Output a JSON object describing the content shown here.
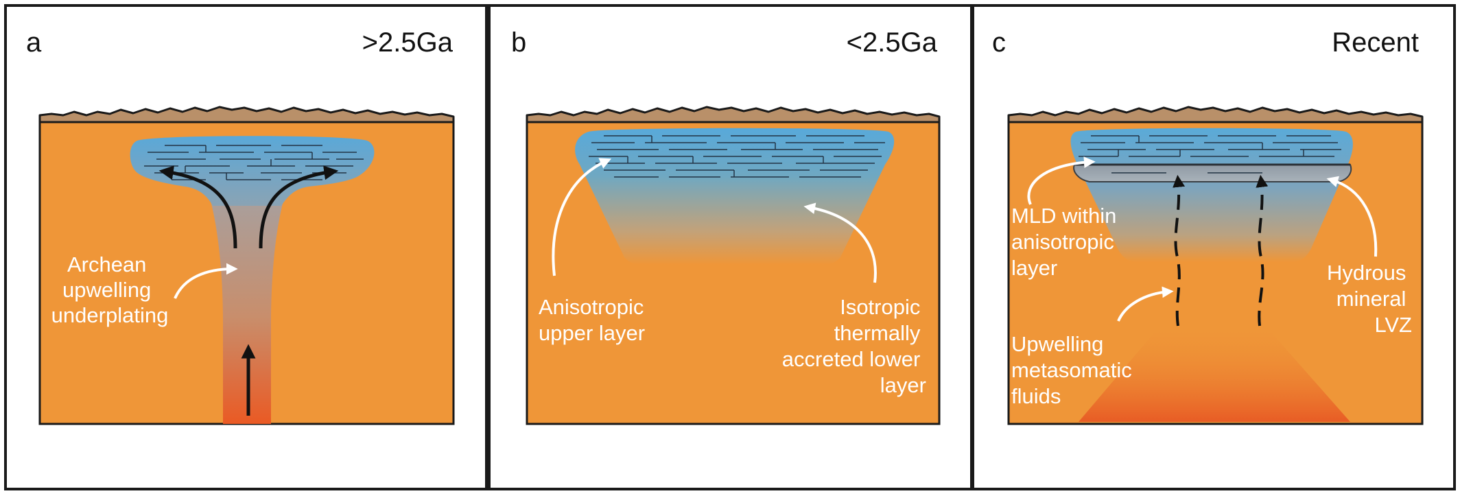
{
  "panels": [
    {
      "letter": "a",
      "era": ">2.5Ga",
      "annotations": [
        {
          "lines": [
            "Archean",
            "upwelling",
            "underplating"
          ]
        }
      ]
    },
    {
      "letter": "b",
      "era": "<2.5Ga",
      "annotations": [
        {
          "lines": [
            "Anisotropic",
            "upper layer"
          ]
        },
        {
          "lines": [
            "Isotropic",
            "thermally",
            "accreted lower",
            "layer"
          ]
        }
      ]
    },
    {
      "letter": "c",
      "era": "Recent",
      "annotations": [
        {
          "lines": [
            "MLD within",
            "anisotropic",
            "layer"
          ]
        },
        {
          "lines": [
            "Hydrous",
            "mineral",
            "LVZ"
          ]
        },
        {
          "lines": [
            "Upwelling",
            "metasomatic",
            "fluids"
          ]
        }
      ]
    }
  ],
  "colors": {
    "mantle": "#ef9638",
    "crust": "#b99069",
    "lithosphere_top": "#5aa9d6",
    "upwelling_hot": "#ea5a24",
    "plume_grey": "#9b9ba6",
    "outline": "#1a1a1a",
    "annotation_text": "#ffffff"
  }
}
